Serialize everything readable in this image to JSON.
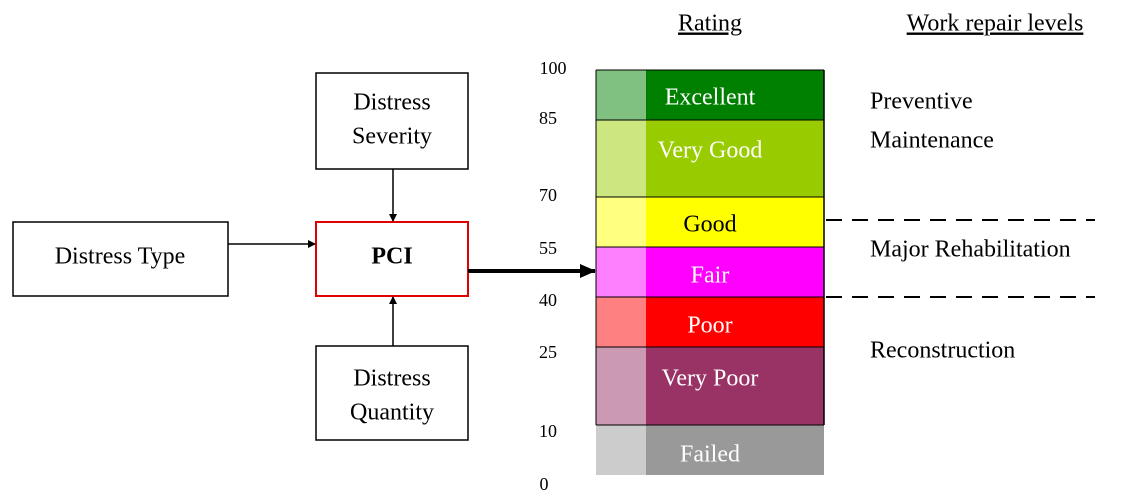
{
  "inputs": {
    "type": "Distress Type",
    "severity": [
      "Distress",
      "Severity"
    ],
    "quantity": [
      "Distress",
      "Quantity"
    ]
  },
  "index": "PCI",
  "rating_header": "Rating",
  "work_header": "Work repair levels",
  "scale": [
    "100",
    "85",
    "70",
    "55",
    "40",
    "25",
    "10",
    "0"
  ],
  "bands": [
    "Excellent",
    "Very Good",
    "Good",
    "Fair",
    "Poor",
    "Very Poor",
    "Failed"
  ],
  "work_levels": {
    "preventive": [
      "Preventive",
      "Maintenance"
    ],
    "major": "Major Rehabilitation",
    "reconstruction": "Reconstruction"
  }
}
